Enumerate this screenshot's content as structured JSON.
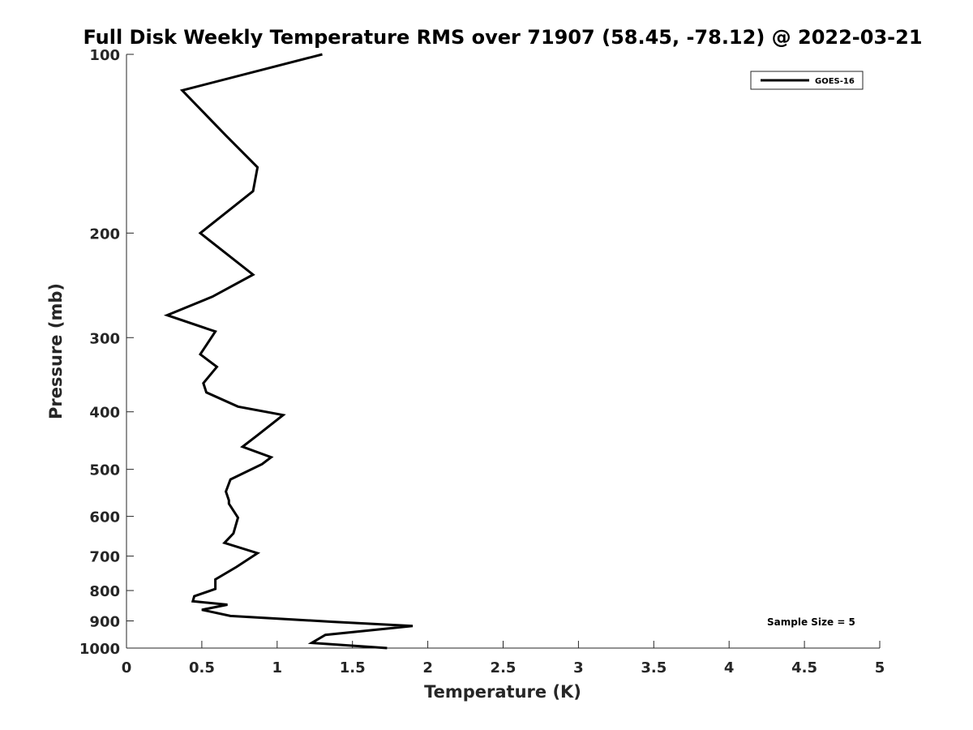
{
  "chart_data": {
    "type": "line",
    "title": "Full Disk Weekly Temperature RMS over 71907 (58.45, -78.12) @ 2022-03-21",
    "xlabel": "Temperature (K)",
    "ylabel": "Pressure (mb)",
    "xlim": [
      0,
      5
    ],
    "ylim": [
      100,
      1000
    ],
    "y_scale": "log",
    "y_reversed": true,
    "grid": false,
    "x_ticks": [
      0,
      0.5,
      1,
      1.5,
      2,
      2.5,
      3,
      3.5,
      4,
      4.5,
      5
    ],
    "x_tick_labels": [
      "0",
      "0.5",
      "1",
      "1.5",
      "2",
      "2.5",
      "3",
      "3.5",
      "4",
      "4.5",
      "5"
    ],
    "y_ticks": [
      100,
      200,
      300,
      400,
      500,
      600,
      700,
      800,
      900,
      1000
    ],
    "y_tick_labels": [
      "100",
      "200",
      "300",
      "400",
      "500",
      "600",
      "700",
      "800",
      "900",
      "1000"
    ],
    "legend_placement": "top-right",
    "annotation": "Sample Size = 5",
    "series": [
      {
        "name": "GOES-16",
        "color": "#000000",
        "x": [
          1.3,
          0.37,
          0.66,
          0.87,
          0.84,
          0.49,
          0.84,
          0.57,
          0.27,
          0.59,
          0.49,
          0.6,
          0.51,
          0.53,
          0.74,
          1.04,
          0.87,
          0.77,
          0.96,
          0.9,
          0.69,
          0.66,
          0.68,
          0.68,
          0.74,
          0.71,
          0.65,
          0.87,
          0.73,
          0.59,
          0.59,
          0.45,
          0.44,
          0.67,
          0.5,
          0.69,
          1.37,
          1.9,
          1.32,
          1.23,
          1.73
        ],
        "y": [
          100,
          115,
          137,
          155,
          170,
          200,
          235,
          256,
          275,
          293,
          320,
          336,
          358,
          371,
          392,
          405,
          438,
          458,
          477,
          490,
          520,
          545,
          564,
          571,
          603,
          641,
          665,
          692,
          730,
          766,
          795,
          818,
          834,
          845,
          862,
          883,
          903,
          918,
          950,
          980,
          1000
        ]
      }
    ]
  }
}
